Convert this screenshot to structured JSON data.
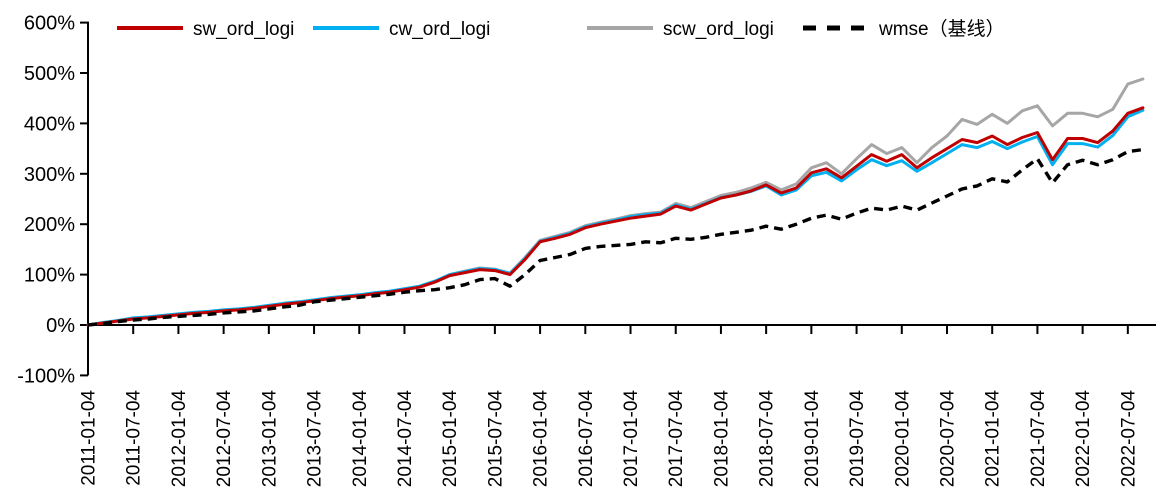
{
  "page": {
    "background": "#ffffff",
    "title": ""
  },
  "chart_data": {
    "type": "line",
    "title": "",
    "xlabel": "",
    "ylabel": "",
    "grid": false,
    "legend_position": "top",
    "ylim": [
      -100,
      600
    ],
    "y_ticks": [
      "600%",
      "500%",
      "400%",
      "300%",
      "200%",
      "100%",
      "0%",
      "-100%"
    ],
    "y_tick_values": [
      600,
      500,
      400,
      300,
      200,
      100,
      0,
      -100
    ],
    "x_tick_labels": [
      "2011-01-04",
      "2011-07-04",
      "2012-01-04",
      "2012-07-04",
      "2013-01-04",
      "2013-07-04",
      "2014-01-04",
      "2014-07-04",
      "2015-01-04",
      "2015-07-04",
      "2016-01-04",
      "2016-07-04",
      "2017-01-04",
      "2017-07-04",
      "2018-01-04",
      "2018-07-04",
      "2019-01-04",
      "2019-07-04",
      "2020-01-04",
      "2020-07-04",
      "2021-01-04",
      "2021-07-04",
      "2022-01-04",
      "2022-07-04"
    ],
    "x": [
      "2011-01",
      "2011-03",
      "2011-05",
      "2011-07",
      "2011-09",
      "2011-11",
      "2012-01",
      "2012-03",
      "2012-05",
      "2012-07",
      "2012-09",
      "2012-11",
      "2013-01",
      "2013-03",
      "2013-05",
      "2013-07",
      "2013-09",
      "2013-11",
      "2014-01",
      "2014-03",
      "2014-05",
      "2014-07",
      "2014-09",
      "2014-11",
      "2015-01",
      "2015-03",
      "2015-05",
      "2015-07",
      "2015-09",
      "2015-11",
      "2016-01",
      "2016-03",
      "2016-05",
      "2016-07",
      "2016-09",
      "2016-11",
      "2017-01",
      "2017-03",
      "2017-05",
      "2017-07",
      "2017-09",
      "2017-11",
      "2018-01",
      "2018-03",
      "2018-05",
      "2018-07",
      "2018-09",
      "2018-11",
      "2019-01",
      "2019-03",
      "2019-05",
      "2019-07",
      "2019-09",
      "2019-11",
      "2020-01",
      "2020-03",
      "2020-05",
      "2020-07",
      "2020-09",
      "2020-11",
      "2021-01",
      "2021-03",
      "2021-05",
      "2021-07",
      "2021-09",
      "2021-11",
      "2022-01",
      "2022-03",
      "2022-05",
      "2022-07",
      "2022-09"
    ],
    "value_unit": "%",
    "draw_order": [
      2,
      1,
      0,
      3
    ],
    "series": [
      {
        "name": "sw_ord_logi",
        "color": "#C00000",
        "style": "solid",
        "values": [
          0,
          4,
          8,
          12,
          14,
          17,
          20,
          23,
          25,
          28,
          30,
          33,
          37,
          41,
          44,
          48,
          52,
          55,
          58,
          62,
          65,
          70,
          75,
          85,
          98,
          104,
          110,
          108,
          100,
          130,
          165,
          172,
          180,
          193,
          200,
          206,
          212,
          216,
          220,
          236,
          228,
          240,
          252,
          258,
          266,
          278,
          262,
          272,
          302,
          310,
          292,
          315,
          338,
          325,
          338,
          312,
          332,
          350,
          368,
          362,
          375,
          358,
          372,
          382,
          328,
          370,
          370,
          362,
          385,
          420,
          431
        ]
      },
      {
        "name": "cw_ord_logi",
        "color": "#00B0F0",
        "style": "solid",
        "values": [
          0,
          5,
          9,
          14,
          16,
          19,
          22,
          25,
          27,
          30,
          32,
          35,
          39,
          43,
          46,
          50,
          54,
          57,
          60,
          64,
          67,
          72,
          77,
          87,
          100,
          106,
          112,
          110,
          102,
          132,
          166,
          174,
          182,
          195,
          202,
          208,
          215,
          219,
          222,
          238,
          230,
          241,
          253,
          258,
          265,
          276,
          258,
          268,
          296,
          303,
          286,
          308,
          328,
          316,
          326,
          305,
          322,
          340,
          358,
          352,
          364,
          350,
          363,
          374,
          318,
          360,
          360,
          353,
          376,
          413,
          426
        ]
      },
      {
        "name": "scw_ord_logi",
        "color": "#A6A6A6",
        "style": "solid",
        "values": [
          0,
          4,
          8,
          13,
          15,
          18,
          21,
          24,
          26,
          29,
          31,
          34,
          38,
          42,
          45,
          49,
          53,
          56,
          59,
          63,
          66,
          71,
          76,
          86,
          100,
          107,
          113,
          111,
          103,
          134,
          168,
          176,
          184,
          197,
          204,
          210,
          217,
          221,
          224,
          241,
          233,
          245,
          257,
          263,
          272,
          283,
          268,
          280,
          312,
          322,
          300,
          330,
          358,
          340,
          352,
          322,
          352,
          375,
          408,
          398,
          418,
          400,
          425,
          435,
          395,
          420,
          420,
          413,
          428,
          478,
          488
        ]
      },
      {
        "name": "wmse（基线）",
        "color": "#000000",
        "style": "dashed",
        "values": [
          0,
          3,
          7,
          10,
          12,
          15,
          17,
          19,
          21,
          24,
          26,
          28,
          32,
          36,
          39,
          46,
          49,
          52,
          55,
          58,
          61,
          65,
          68,
          70,
          74,
          80,
          90,
          92,
          77,
          100,
          128,
          134,
          140,
          152,
          156,
          158,
          160,
          165,
          163,
          172,
          170,
          174,
          180,
          184,
          188,
          196,
          190,
          200,
          212,
          218,
          210,
          222,
          232,
          228,
          236,
          228,
          242,
          256,
          270,
          276,
          290,
          284,
          308,
          330,
          282,
          318,
          327,
          318,
          328,
          344,
          348
        ]
      }
    ]
  }
}
